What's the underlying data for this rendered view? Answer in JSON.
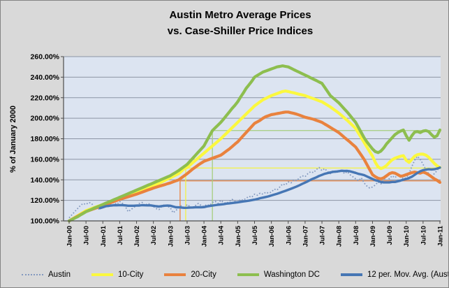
{
  "title": {
    "line1": "Austin Metro Average Prices",
    "line2": "vs. Case-Shiller Price Indices"
  },
  "y_axis": {
    "title": "% of January 2000",
    "tick_labels": [
      "260.00%",
      "240.00%",
      "220.00%",
      "200.00%",
      "180.00%",
      "160.00%",
      "140.00%",
      "120.00%",
      "100.00%"
    ]
  },
  "x_axis": {
    "tick_labels": [
      "Jan-00",
      "Jul-00",
      "Jan-01",
      "Jul-01",
      "Jan-02",
      "Jul-02",
      "Jan-03",
      "Jul-03",
      "Jan-04",
      "Jul-04",
      "Jan-05",
      "Jul-05",
      "Jan-06",
      "Jul-06",
      "Jan-07",
      "Jul-07",
      "Jan-08",
      "Jul-08",
      "Jan-09",
      "Jul-09",
      "Jan-10",
      "Jul-10",
      "Jan-11"
    ],
    "months_between_ticks": 6
  },
  "legend": {
    "items": [
      {
        "label": "Austin",
        "style": "dotted",
        "color": "#8399BF"
      },
      {
        "label": "10-City",
        "style": "solid",
        "color": "#FBF83E"
      },
      {
        "label": "20-City",
        "style": "solid",
        "color": "#E9823E"
      },
      {
        "label": "Washington DC",
        "style": "solid",
        "color": "#8DBE4F"
      },
      {
        "label": "12 per. Mov. Avg. (Austin)",
        "style": "solid",
        "color": "#4676B4"
      }
    ]
  },
  "colors": {
    "chart_background": "#D9D9D9",
    "plot_background": "#DCE4F1",
    "gridline": "#8C95A5",
    "axis": "#4D4D4D",
    "border": "#848484"
  },
  "chart_data": {
    "type": "line",
    "title": "Austin Metro Average Prices vs. Case-Shiller Price Indices",
    "ylabel": "% of January 2000",
    "ylim": [
      100,
      260
    ],
    "y_tick_step": 20,
    "x_unit": "monthly, Jan-2000 through Jan-2011 (133 points per series)",
    "grid": true,
    "legend_position": "bottom",
    "series": [
      {
        "id": "austin",
        "name": "Austin",
        "style": "dotted",
        "color": "#8399BF",
        "values": [
          103,
          106,
          109,
          112,
          115,
          117,
          116,
          118,
          117,
          113,
          111,
          112,
          114,
          116,
          114,
          117,
          118,
          116,
          119,
          117,
          114,
          109,
          111,
          113,
          115,
          117,
          118,
          115,
          117,
          116,
          114,
          112,
          111,
          114,
          116,
          114,
          113,
          108,
          110,
          113,
          115,
          112,
          116,
          114,
          112,
          115,
          117,
          115,
          114,
          116,
          115,
          118,
          119,
          117,
          120,
          118,
          117,
          119,
          121,
          119,
          118,
          121,
          120,
          122,
          124,
          123,
          126,
          125,
          127,
          126,
          128,
          127,
          128,
          131,
          130,
          133,
          136,
          135,
          138,
          137,
          140,
          139,
          142,
          144,
          143,
          146,
          148,
          147,
          150,
          152,
          149,
          151,
          148,
          146,
          149,
          147,
          148,
          150,
          146,
          148,
          145,
          143,
          141,
          139,
          142,
          137,
          134,
          132,
          133,
          135,
          138,
          136,
          140,
          143,
          141,
          144,
          142,
          145,
          143,
          141,
          142,
          146,
          153,
          159,
          163,
          160,
          155,
          150,
          146,
          143,
          146,
          149,
          153
        ]
      },
      {
        "id": "10-city",
        "name": "10-City",
        "style": "thick",
        "color": "#FBF83E",
        "values": [
          100.0,
          101.7,
          103.3,
          105.0,
          106.7,
          108.3,
          110.0,
          111.0,
          112.0,
          113.0,
          114.0,
          115.0,
          116.0,
          117.0,
          118.0,
          119.0,
          120.0,
          121.0,
          122.0,
          123.0,
          124.0,
          125.0,
          126.0,
          127.0,
          128.0,
          129.0,
          130.0,
          131.0,
          132.0,
          133.0,
          134.0,
          135.3,
          136.7,
          138.0,
          139.3,
          140.7,
          142.0,
          143.3,
          144.7,
          146.0,
          148.5,
          151.0,
          152.0,
          154.3,
          156.7,
          159.0,
          161.3,
          163.7,
          166.0,
          168.3,
          170.7,
          173.0,
          175.3,
          177.7,
          180.0,
          182.7,
          185.3,
          188.0,
          190.7,
          193.3,
          196.0,
          198.7,
          201.3,
          204.0,
          206.7,
          209.3,
          212.0,
          214.0,
          216.0,
          218.0,
          219.3,
          220.7,
          222.0,
          223.0,
          224.0,
          225.0,
          226.0,
          226.5,
          226.0,
          225.3,
          224.7,
          224.0,
          223.3,
          222.7,
          222.0,
          221.0,
          220.0,
          219.0,
          218.0,
          217.0,
          216.0,
          214.3,
          212.7,
          211.0,
          209.0,
          207.0,
          205.0,
          202.7,
          200.3,
          198.0,
          195.3,
          192.7,
          190.0,
          185.5,
          181.0,
          176.5,
          172.0,
          167.5,
          163.0,
          157.0,
          152.5,
          151.0,
          152.0,
          154.0,
          157.0,
          159.5,
          161.0,
          162.0,
          163.0,
          163.5,
          159.0,
          157.0,
          160.0,
          163.0,
          164.5,
          165.0,
          165.0,
          164.0,
          162.0,
          159.0,
          156.0,
          153.5,
          152.0
        ]
      },
      {
        "id": "20-city",
        "name": "20-City",
        "style": "thick",
        "color": "#E9823E",
        "values": [
          100.0,
          101.5,
          103.0,
          104.5,
          106.0,
          107.5,
          109.0,
          110.0,
          111.0,
          112.0,
          113.0,
          114.0,
          115.0,
          116.0,
          117.0,
          118.0,
          119.0,
          120.0,
          121.0,
          121.8,
          122.7,
          123.5,
          124.3,
          125.2,
          126.0,
          127.0,
          128.0,
          129.0,
          130.0,
          131.0,
          132.0,
          132.8,
          133.7,
          134.5,
          135.3,
          136.2,
          137.0,
          138.0,
          139.0,
          140.0,
          142.0,
          144.0,
          146.0,
          148.3,
          150.5,
          152.5,
          154.5,
          156.3,
          158.0,
          159.0,
          160.0,
          161.0,
          162.0,
          163.0,
          164.0,
          166.0,
          168.0,
          170.0,
          172.3,
          174.7,
          177.0,
          180.0,
          183.0,
          186.0,
          189.0,
          192.0,
          195.0,
          196.5,
          198.0,
          200.0,
          201.5,
          202.5,
          203.5,
          204.0,
          204.5,
          205.0,
          205.5,
          206.0,
          206.0,
          205.3,
          204.7,
          204.0,
          203.0,
          202.0,
          201.0,
          200.3,
          199.7,
          199.0,
          198.0,
          197.0,
          196.0,
          194.3,
          192.7,
          191.0,
          189.3,
          187.7,
          186.0,
          183.7,
          181.3,
          179.0,
          176.7,
          174.3,
          172.0,
          168.0,
          164.0,
          160.0,
          155.0,
          150.0,
          145.0,
          143.0,
          141.5,
          141.0,
          142.0,
          144.0,
          146.0,
          147.0,
          146.5,
          145.0,
          143.5,
          144.0,
          145.0,
          146.0,
          147.0,
          147.5,
          147.0,
          146.5,
          147.5,
          146.5,
          145.0,
          143.0,
          141.0,
          139.5,
          137.5
        ]
      },
      {
        "id": "washington-dc",
        "name": "Washington DC",
        "style": "thick",
        "color": "#8DBE4F",
        "values": [
          100.0,
          101.3,
          102.7,
          104.0,
          105.7,
          107.3,
          109.0,
          110.2,
          111.3,
          112.5,
          113.7,
          114.8,
          116.0,
          117.2,
          118.3,
          119.5,
          120.7,
          121.8,
          123.0,
          124.2,
          125.3,
          126.5,
          127.7,
          128.8,
          130.0,
          131.2,
          132.3,
          133.5,
          134.7,
          135.8,
          137.0,
          138.2,
          139.3,
          140.5,
          141.7,
          142.8,
          144.0,
          145.7,
          147.3,
          149.0,
          151.0,
          153.0,
          155.0,
          158.0,
          161.0,
          164.0,
          167.0,
          170.0,
          173.0,
          178.0,
          183.0,
          188.0,
          190.7,
          193.3,
          196.0,
          199.3,
          202.7,
          206.0,
          209.5,
          212.5,
          216.0,
          220.5,
          224.5,
          229.0,
          232.5,
          236.0,
          240.0,
          241.7,
          243.3,
          245.0,
          246.0,
          247.0,
          248.0,
          249.0,
          250.0,
          250.5,
          251.0,
          250.5,
          250.0,
          248.7,
          247.3,
          246.0,
          244.7,
          243.3,
          242.0,
          240.7,
          239.3,
          238.0,
          236.7,
          235.3,
          234.0,
          230.0,
          226.0,
          222.0,
          219.7,
          217.3,
          215.0,
          212.0,
          209.0,
          206.0,
          202.7,
          199.3,
          196.0,
          191.0,
          186.0,
          181.0,
          177.0,
          173.5,
          170.0,
          167.5,
          166.5,
          168.0,
          171.0,
          175.0,
          178.0,
          181.0,
          184.0,
          186.0,
          187.5,
          188.5,
          183.0,
          178.5,
          183.0,
          186.5,
          187.0,
          186.0,
          187.5,
          188.0,
          187.0,
          184.0,
          181.5,
          183.0,
          188.5
        ]
      },
      {
        "id": "12-per-mov-avg-austin",
        "name": "12 per. Mov. Avg. (Austin)",
        "style": "medium",
        "color": "#4676B4",
        "values": [
          null,
          null,
          null,
          null,
          null,
          null,
          null,
          null,
          null,
          null,
          null,
          112.4,
          113.3,
          114.2,
          114.6,
          115.0,
          115.3,
          115.2,
          115.4,
          115.3,
          115.1,
          114.8,
          114.8,
          114.8,
          114.9,
          115.0,
          115.3,
          115.2,
          115.1,
          115.1,
          114.7,
          114.3,
          114.0,
          114.4,
          114.8,
          114.9,
          114.8,
          114.0,
          113.3,
          113.2,
          113.0,
          112.7,
          112.8,
          113.0,
          113.1,
          113.2,
          113.3,
          113.3,
          113.4,
          114.1,
          114.5,
          114.9,
          115.3,
          115.7,
          116.0,
          116.3,
          116.8,
          117.1,
          117.4,
          117.8,
          118.1,
          118.5,
          118.9,
          119.3,
          119.7,
          120.2,
          120.7,
          121.3,
          122.1,
          122.7,
          123.3,
          123.9,
          124.8,
          125.6,
          126.4,
          127.3,
          128.3,
          129.3,
          130.3,
          131.3,
          132.4,
          133.5,
          134.7,
          136.1,
          137.3,
          138.6,
          140.1,
          141.3,
          142.4,
          143.8,
          144.8,
          145.9,
          146.6,
          147.2,
          147.8,
          148.0,
          148.4,
          148.8,
          148.6,
          148.7,
          148.3,
          147.5,
          146.8,
          145.8,
          145.3,
          144.6,
          143.3,
          142.1,
          140.8,
          139.6,
          138.9,
          137.9,
          137.5,
          137.5,
          137.5,
          137.9,
          137.9,
          138.6,
          139.3,
          140.1,
          140.8,
          141.8,
          143.0,
          144.9,
          146.8,
          148.3,
          149.4,
          149.9,
          150.3,
          150.1,
          150.3,
          151.0,
          151.9
        ]
      }
    ],
    "reference_lines": [
      {
        "id": "ref-20-city",
        "series": "20-City",
        "level_pct": 139.0,
        "vertical_at_month": 39.5,
        "color": "#E9823E"
      },
      {
        "id": "ref-10-city",
        "series": "10-City",
        "level_pct": 151.5,
        "vertical_at_month": 41.5,
        "color": "#F5F243"
      },
      {
        "id": "ref-washington-dc",
        "series": "Washington DC",
        "level_pct": 188.0,
        "vertical_at_month": 51.0,
        "color": "#A6CE7D"
      }
    ]
  }
}
